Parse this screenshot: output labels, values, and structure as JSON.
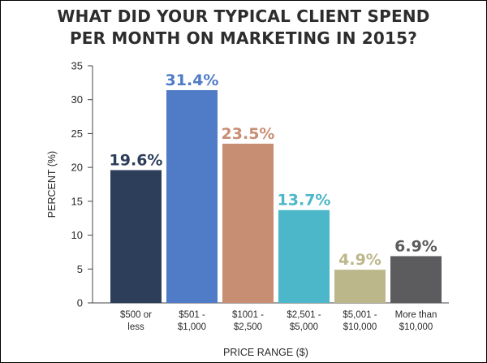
{
  "chart_data": {
    "type": "bar",
    "title_lines": [
      "WHAT DID YOUR TYPICAL CLIENT SPEND",
      "PER MONTH ON MARKETING IN 2015?"
    ],
    "xlabel": "PRICE RANGE ($)",
    "ylabel": "PERCENT (%)",
    "ylim": [
      0,
      35
    ],
    "yticks": [
      0,
      5,
      10,
      15,
      20,
      25,
      30,
      35
    ],
    "grid": false,
    "categories": [
      [
        "$500 or",
        "less"
      ],
      [
        "$501 -",
        "$1,000"
      ],
      [
        "$1001 -",
        "$2,500"
      ],
      [
        "$2,501 -",
        "$5,000"
      ],
      [
        "$5,001 -",
        "$10,000"
      ],
      [
        "More than",
        "$10,000"
      ]
    ],
    "values": [
      19.6,
      31.4,
      23.5,
      13.7,
      4.9,
      6.9
    ],
    "value_labels": [
      "19.6%",
      "31.4%",
      "23.5%",
      "13.7%",
      "4.9%",
      "6.9%"
    ],
    "bar_colors": [
      "#2c3e5a",
      "#4f7bc7",
      "#c88e74",
      "#4bb7c8",
      "#bcb78a",
      "#5c5c5e"
    ],
    "label_colors": [
      "#2c3e5a",
      "#4f7bc7",
      "#c88e74",
      "#4bb7c8",
      "#bcb78a",
      "#5c5c5e"
    ]
  }
}
